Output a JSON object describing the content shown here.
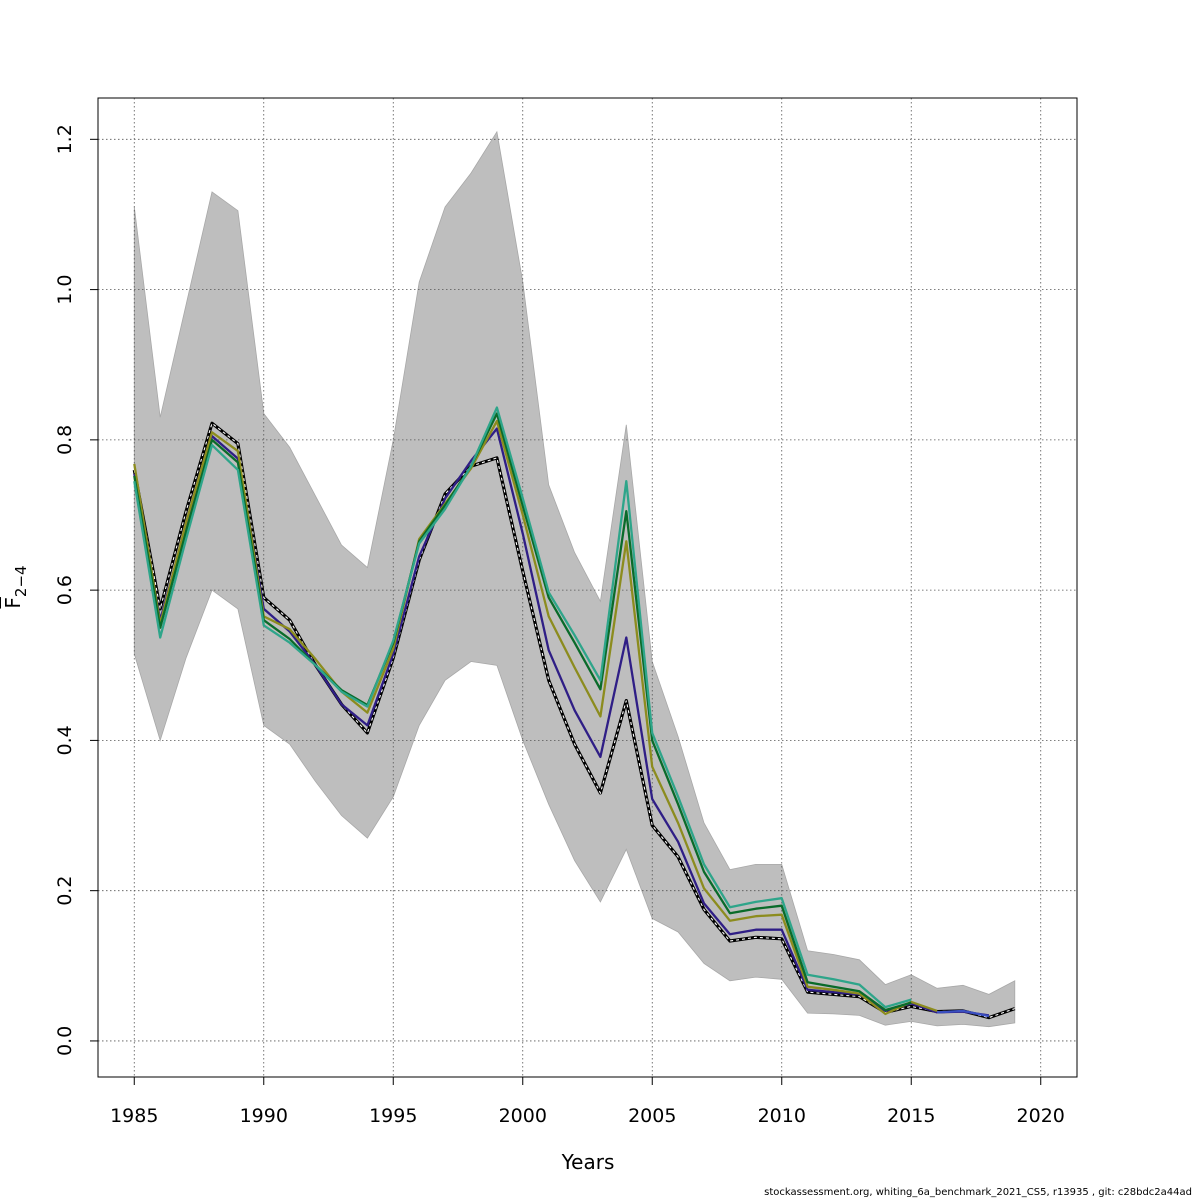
{
  "chart_data": {
    "type": "line",
    "title": "",
    "xlabel": "Years",
    "ylabel_main": "F",
    "ylabel_sub": "2−4",
    "xlim": [
      1983.6,
      2021.4
    ],
    "ylim": [
      -0.048,
      1.255
    ],
    "xticks": [
      1985,
      1990,
      1995,
      2000,
      2005,
      2010,
      2015,
      2020
    ],
    "yticks": [
      0.0,
      0.2,
      0.4,
      0.6,
      0.8,
      1.0,
      1.2
    ],
    "ytick_labels": [
      "0.0",
      "0.2",
      "0.4",
      "0.6",
      "0.8",
      "1.0",
      "1.2"
    ],
    "grid": true,
    "band": {
      "color": "#bebebe",
      "x": [
        1985,
        1986,
        1987,
        1988,
        1989,
        1990,
        1991,
        1992,
        1993,
        1994,
        1995,
        1996,
        1997,
        1998,
        1999,
        2000,
        2001,
        2002,
        2003,
        2004,
        2005,
        2006,
        2007,
        2008,
        2009,
        2010,
        2011,
        2012,
        2013,
        2014,
        2015,
        2016,
        2017,
        2018,
        2019
      ],
      "upper": [
        1.11,
        0.83,
        0.98,
        1.13,
        1.105,
        0.835,
        0.79,
        0.725,
        0.66,
        0.63,
        0.8,
        1.01,
        1.11,
        1.155,
        1.21,
        1.01,
        0.74,
        0.65,
        0.585,
        0.82,
        0.505,
        0.405,
        0.29,
        0.228,
        0.235,
        0.235,
        0.12,
        0.115,
        0.108,
        0.075,
        0.088,
        0.07,
        0.074,
        0.062,
        0.08
      ],
      "lower": [
        0.515,
        0.4,
        0.51,
        0.6,
        0.575,
        0.42,
        0.395,
        0.345,
        0.3,
        0.27,
        0.325,
        0.42,
        0.48,
        0.505,
        0.5,
        0.4,
        0.315,
        0.24,
        0.185,
        0.255,
        0.163,
        0.145,
        0.103,
        0.08,
        0.085,
        0.082,
        0.037,
        0.036,
        0.034,
        0.021,
        0.026,
        0.02,
        0.022,
        0.019,
        0.024
      ]
    },
    "x": [
      1985,
      1986,
      1987,
      1988,
      1989,
      1990,
      1991,
      1992,
      1993,
      1994,
      1995,
      1996,
      1997,
      1998,
      1999,
      2000,
      2001,
      2002,
      2003,
      2004,
      2005,
      2006,
      2007,
      2008,
      2009,
      2010,
      2011,
      2012,
      2013,
      2014,
      2015,
      2016,
      2017,
      2018,
      2019
    ],
    "series": [
      {
        "color": "#000000",
        "style": "dashed-white",
        "values": [
          0.76,
          0.575,
          0.705,
          0.822,
          0.795,
          0.59,
          0.56,
          0.5,
          0.448,
          0.41,
          0.51,
          0.64,
          0.728,
          0.765,
          0.776,
          0.625,
          0.48,
          0.395,
          0.33,
          0.453,
          0.287,
          0.245,
          0.175,
          0.133,
          0.138,
          0.136,
          0.065,
          0.062,
          0.059,
          0.038,
          0.046,
          0.039,
          0.04,
          0.031,
          0.043
        ]
      },
      {
        "color": "#2f1e86",
        "style": "solid",
        "values": [
          0.755,
          0.56,
          0.685,
          0.805,
          0.775,
          0.575,
          0.545,
          0.5,
          0.448,
          0.42,
          0.515,
          0.645,
          0.722,
          0.772,
          0.815,
          0.675,
          0.52,
          0.44,
          0.378,
          0.537,
          0.322,
          0.265,
          0.183,
          0.142,
          0.148,
          0.148,
          0.068,
          0.065,
          0.062,
          0.04,
          0.05,
          0.038,
          0.039,
          0.034,
          null
        ]
      },
      {
        "color": "#8c8c1e",
        "style": "solid",
        "values": [
          0.768,
          0.555,
          0.69,
          0.81,
          0.785,
          0.565,
          0.548,
          0.508,
          0.465,
          0.437,
          0.522,
          0.668,
          0.715,
          0.762,
          0.825,
          0.7,
          0.565,
          0.497,
          0.432,
          0.665,
          0.365,
          0.29,
          0.203,
          0.16,
          0.166,
          0.168,
          0.072,
          0.068,
          0.063,
          0.036,
          0.052,
          0.04,
          null,
          null,
          null
        ]
      },
      {
        "color": "#0a6b2a",
        "style": "solid",
        "values": [
          0.752,
          0.55,
          0.678,
          0.8,
          0.77,
          0.56,
          0.535,
          0.5,
          0.467,
          0.447,
          0.53,
          0.665,
          0.713,
          0.765,
          0.835,
          0.712,
          0.59,
          0.53,
          0.468,
          0.705,
          0.4,
          0.315,
          0.225,
          0.17,
          0.176,
          0.18,
          0.078,
          0.072,
          0.066,
          0.041,
          0.051,
          null,
          null,
          null,
          null
        ]
      },
      {
        "color": "#2ea58a",
        "style": "solid",
        "values": [
          0.745,
          0.537,
          0.668,
          0.793,
          0.76,
          0.553,
          0.53,
          0.5,
          0.465,
          0.445,
          0.533,
          0.662,
          0.708,
          0.765,
          0.843,
          0.722,
          0.597,
          0.54,
          0.48,
          0.745,
          0.41,
          0.325,
          0.235,
          0.178,
          0.185,
          0.19,
          0.088,
          0.082,
          0.075,
          0.045,
          0.055,
          null,
          null,
          null,
          null
        ]
      },
      {
        "color": "#3a4fc0",
        "style": "solid",
        "values": [
          null,
          null,
          null,
          null,
          null,
          null,
          null,
          null,
          null,
          null,
          null,
          null,
          null,
          null,
          null,
          null,
          null,
          null,
          null,
          null,
          null,
          null,
          null,
          null,
          null,
          null,
          null,
          null,
          null,
          null,
          null,
          0.038,
          0.04,
          0.033,
          null
        ]
      }
    ]
  },
  "footer": "stockassessment.org, whiting_6a_benchmark_2021_CS5, r13935 , git: c28bdc2a44ad"
}
